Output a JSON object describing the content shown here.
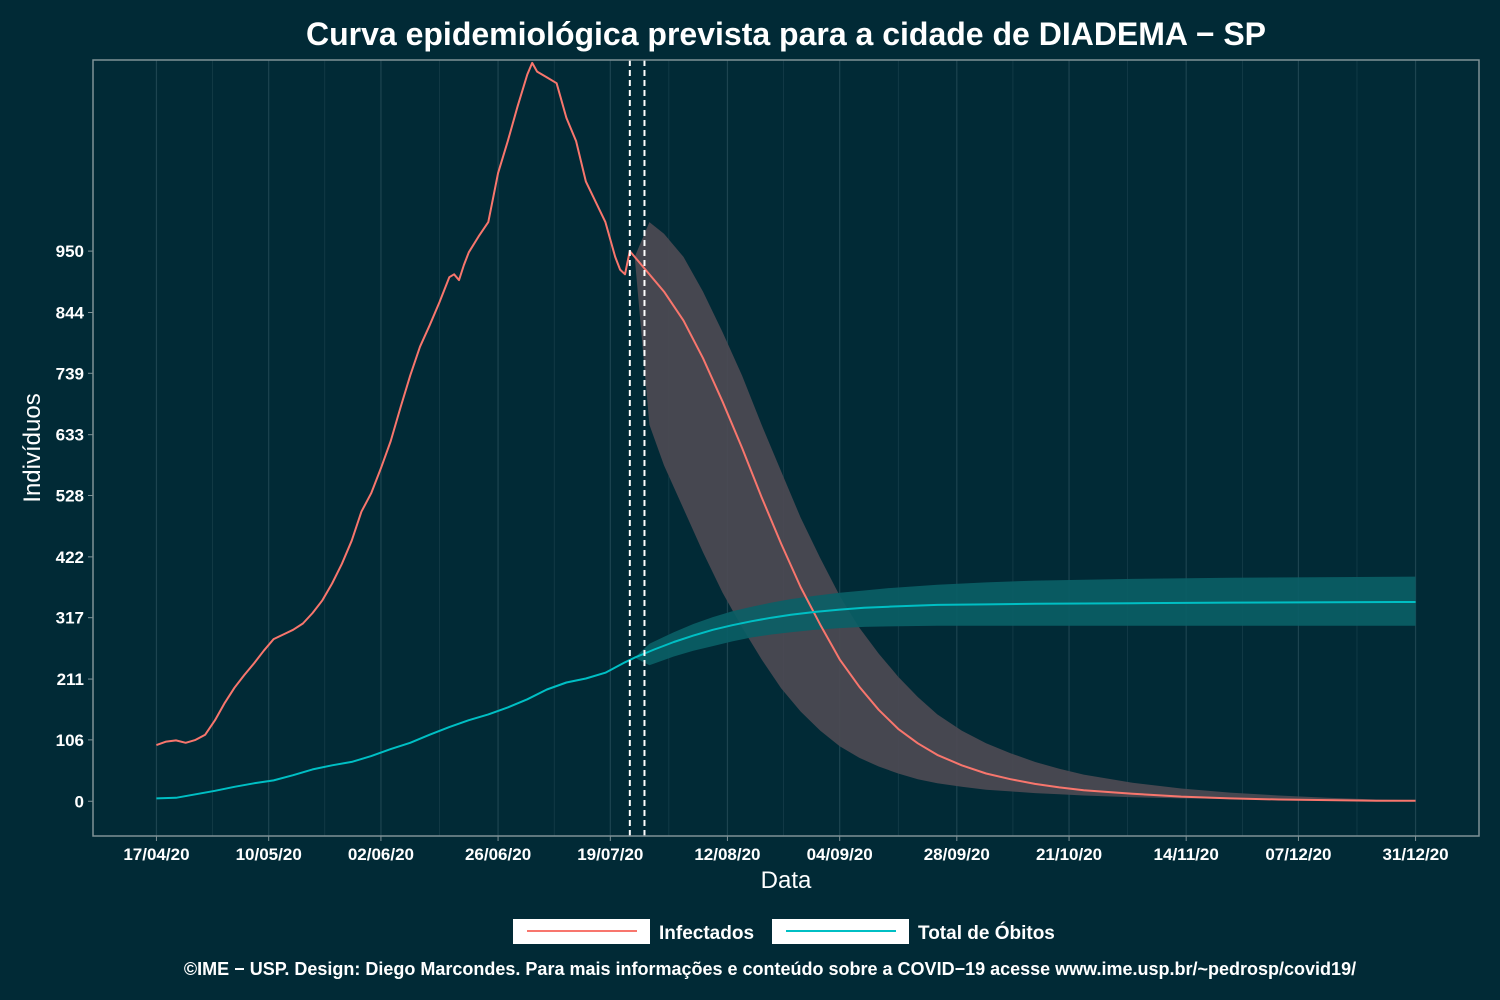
{
  "chart_data": {
    "type": "line",
    "title": "Curva epidemiológica prevista para a cidade de DIADEMA − SP",
    "xlabel": "Data",
    "ylabel": "Indivíduos",
    "x_start": "17/04/20",
    "x_end": "31/12/20",
    "xticks": [
      {
        "day": 0,
        "label": "17/04/20"
      },
      {
        "day": 23,
        "label": "10/05/20"
      },
      {
        "day": 46,
        "label": "02/06/20"
      },
      {
        "day": 70,
        "label": "26/06/20"
      },
      {
        "day": 93,
        "label": "19/07/20"
      },
      {
        "day": 117,
        "label": "12/08/20"
      },
      {
        "day": 140,
        "label": "04/09/20"
      },
      {
        "day": 164,
        "label": "28/09/20"
      },
      {
        "day": 187,
        "label": "21/10/20"
      },
      {
        "day": 211,
        "label": "14/11/20"
      },
      {
        "day": 234,
        "label": "07/12/20"
      },
      {
        "day": 258,
        "label": "31/12/20"
      }
    ],
    "yticks": [
      "0",
      "106",
      "211",
      "317",
      "422",
      "528",
      "633",
      "739",
      "844",
      "950"
    ],
    "ytick_values": [
      0,
      106,
      211,
      317,
      422,
      528,
      633,
      739,
      844,
      950
    ],
    "ylim": [
      -60,
      1280
    ],
    "xlim": [
      -13,
      271
    ],
    "vlines_days": [
      97,
      100
    ],
    "grid": true,
    "legend_position": "bottom",
    "colors": {
      "background": "#012a36",
      "grid": "#1d4450",
      "infectados": "#f8766d",
      "obitos": "#00bfc4",
      "band_infectados": "#4e4a53",
      "band_obitos": "#0a5f66",
      "vline": "#ffffff"
    },
    "series": [
      {
        "name": "Infectados",
        "color": "#f8766d",
        "observed": [
          [
            0,
            97
          ],
          [
            2,
            103
          ],
          [
            4,
            105
          ],
          [
            6,
            101
          ],
          [
            8,
            106
          ],
          [
            10,
            115
          ],
          [
            12,
            140
          ],
          [
            14,
            170
          ],
          [
            16,
            196
          ],
          [
            18,
            218
          ],
          [
            20,
            238
          ],
          [
            22,
            260
          ],
          [
            24,
            280
          ],
          [
            26,
            288
          ],
          [
            28,
            296
          ],
          [
            30,
            307
          ],
          [
            32,
            325
          ],
          [
            34,
            347
          ],
          [
            36,
            376
          ],
          [
            38,
            410
          ],
          [
            40,
            450
          ],
          [
            42,
            500
          ],
          [
            44,
            532
          ],
          [
            46,
            575
          ],
          [
            48,
            622
          ],
          [
            50,
            680
          ],
          [
            52,
            735
          ],
          [
            54,
            785
          ],
          [
            56,
            822
          ],
          [
            58,
            862
          ],
          [
            60,
            905
          ],
          [
            61,
            910
          ],
          [
            62,
            900
          ],
          [
            63,
            926
          ],
          [
            64,
            948
          ],
          [
            66,
            975
          ],
          [
            68,
            1000
          ],
          [
            70,
            1085
          ],
          [
            72,
            1140
          ],
          [
            74,
            1200
          ],
          [
            76,
            1255
          ],
          [
            77,
            1275
          ],
          [
            78,
            1260
          ],
          [
            80,
            1250
          ],
          [
            82,
            1240
          ],
          [
            84,
            1180
          ],
          [
            86,
            1140
          ],
          [
            88,
            1070
          ],
          [
            90,
            1035
          ],
          [
            92,
            1000
          ],
          [
            94,
            940
          ],
          [
            95,
            918
          ],
          [
            96,
            910
          ],
          [
            97,
            950
          ],
          [
            98,
            940
          ]
        ],
        "forecast_mean": [
          [
            98,
            940
          ],
          [
            100,
            920
          ],
          [
            104,
            880
          ],
          [
            108,
            830
          ],
          [
            112,
            765
          ],
          [
            116,
            690
          ],
          [
            120,
            610
          ],
          [
            124,
            525
          ],
          [
            128,
            445
          ],
          [
            132,
            370
          ],
          [
            136,
            305
          ],
          [
            140,
            245
          ],
          [
            144,
            198
          ],
          [
            148,
            158
          ],
          [
            152,
            125
          ],
          [
            156,
            100
          ],
          [
            160,
            80
          ],
          [
            165,
            62
          ],
          [
            170,
            48
          ],
          [
            175,
            38
          ],
          [
            180,
            30
          ],
          [
            185,
            24
          ],
          [
            190,
            19
          ],
          [
            200,
            13
          ],
          [
            210,
            8
          ],
          [
            220,
            5
          ],
          [
            230,
            3
          ],
          [
            240,
            2
          ],
          [
            250,
            1
          ],
          [
            258,
            1
          ]
        ],
        "band_upper": [
          [
            98,
            940
          ],
          [
            101,
            1000
          ],
          [
            104,
            980
          ],
          [
            108,
            940
          ],
          [
            112,
            880
          ],
          [
            116,
            810
          ],
          [
            120,
            735
          ],
          [
            124,
            650
          ],
          [
            128,
            570
          ],
          [
            132,
            490
          ],
          [
            136,
            420
          ],
          [
            140,
            355
          ],
          [
            144,
            300
          ],
          [
            148,
            255
          ],
          [
            152,
            215
          ],
          [
            156,
            180
          ],
          [
            160,
            150
          ],
          [
            165,
            122
          ],
          [
            170,
            100
          ],
          [
            175,
            83
          ],
          [
            180,
            68
          ],
          [
            185,
            56
          ],
          [
            190,
            46
          ],
          [
            200,
            32
          ],
          [
            210,
            22
          ],
          [
            220,
            15
          ],
          [
            230,
            10
          ],
          [
            240,
            6
          ],
          [
            250,
            3
          ],
          [
            258,
            2
          ]
        ],
        "band_lower": [
          [
            98,
            940
          ],
          [
            101,
            650
          ],
          [
            104,
            580
          ],
          [
            108,
            505
          ],
          [
            112,
            430
          ],
          [
            116,
            360
          ],
          [
            120,
            300
          ],
          [
            124,
            245
          ],
          [
            128,
            195
          ],
          [
            132,
            155
          ],
          [
            136,
            122
          ],
          [
            140,
            95
          ],
          [
            144,
            75
          ],
          [
            148,
            60
          ],
          [
            152,
            48
          ],
          [
            156,
            38
          ],
          [
            160,
            31
          ],
          [
            165,
            25
          ],
          [
            170,
            20
          ],
          [
            175,
            17
          ],
          [
            180,
            14
          ],
          [
            185,
            12
          ],
          [
            190,
            10
          ],
          [
            200,
            7
          ],
          [
            210,
            5
          ],
          [
            220,
            4
          ],
          [
            230,
            3
          ],
          [
            240,
            2
          ],
          [
            250,
            1
          ],
          [
            258,
            1
          ]
        ]
      },
      {
        "name": "Total de Óbitos",
        "color": "#00bfc4",
        "observed": [
          [
            0,
            5
          ],
          [
            4,
            6
          ],
          [
            8,
            12
          ],
          [
            12,
            18
          ],
          [
            16,
            25
          ],
          [
            20,
            31
          ],
          [
            24,
            36
          ],
          [
            28,
            45
          ],
          [
            32,
            55
          ],
          [
            36,
            62
          ],
          [
            40,
            68
          ],
          [
            44,
            78
          ],
          [
            48,
            90
          ],
          [
            52,
            101
          ],
          [
            56,
            115
          ],
          [
            60,
            128
          ],
          [
            64,
            140
          ],
          [
            68,
            150
          ],
          [
            72,
            162
          ],
          [
            76,
            176
          ],
          [
            80,
            193
          ],
          [
            84,
            205
          ],
          [
            88,
            212
          ],
          [
            92,
            222
          ],
          [
            96,
            240
          ],
          [
            98,
            248
          ]
        ],
        "forecast_mean": [
          [
            98,
            248
          ],
          [
            102,
            262
          ],
          [
            106,
            275
          ],
          [
            110,
            286
          ],
          [
            114,
            296
          ],
          [
            118,
            304
          ],
          [
            122,
            311
          ],
          [
            126,
            317
          ],
          [
            130,
            322
          ],
          [
            135,
            327
          ],
          [
            140,
            331
          ],
          [
            145,
            334
          ],
          [
            150,
            336
          ],
          [
            160,
            339
          ],
          [
            170,
            340
          ],
          [
            180,
            341
          ],
          [
            200,
            342
          ],
          [
            220,
            343
          ],
          [
            258,
            344
          ]
        ],
        "band_upper": [
          [
            98,
            248
          ],
          [
            101,
            272
          ],
          [
            106,
            292
          ],
          [
            110,
            306
          ],
          [
            114,
            318
          ],
          [
            118,
            328
          ],
          [
            122,
            336
          ],
          [
            126,
            343
          ],
          [
            130,
            349
          ],
          [
            135,
            355
          ],
          [
            140,
            360
          ],
          [
            145,
            364
          ],
          [
            150,
            368
          ],
          [
            160,
            374
          ],
          [
            170,
            378
          ],
          [
            180,
            381
          ],
          [
            200,
            384
          ],
          [
            220,
            386
          ],
          [
            258,
            388
          ]
        ],
        "band_lower": [
          [
            98,
            248
          ],
          [
            101,
            235
          ],
          [
            106,
            250
          ],
          [
            110,
            260
          ],
          [
            114,
            268
          ],
          [
            118,
            276
          ],
          [
            122,
            283
          ],
          [
            126,
            288
          ],
          [
            130,
            292
          ],
          [
            135,
            296
          ],
          [
            140,
            299
          ],
          [
            145,
            301
          ],
          [
            150,
            302
          ],
          [
            160,
            303
          ],
          [
            170,
            303
          ],
          [
            180,
            303
          ],
          [
            200,
            303
          ],
          [
            220,
            303
          ],
          [
            258,
            303
          ]
        ]
      }
    ]
  },
  "caption": "©IME − USP. Design: Diego Marcondes. Para mais informações e conteúdo sobre a COVID−19 acesse www.ime.usp.br/~pedrosp/covid19/"
}
